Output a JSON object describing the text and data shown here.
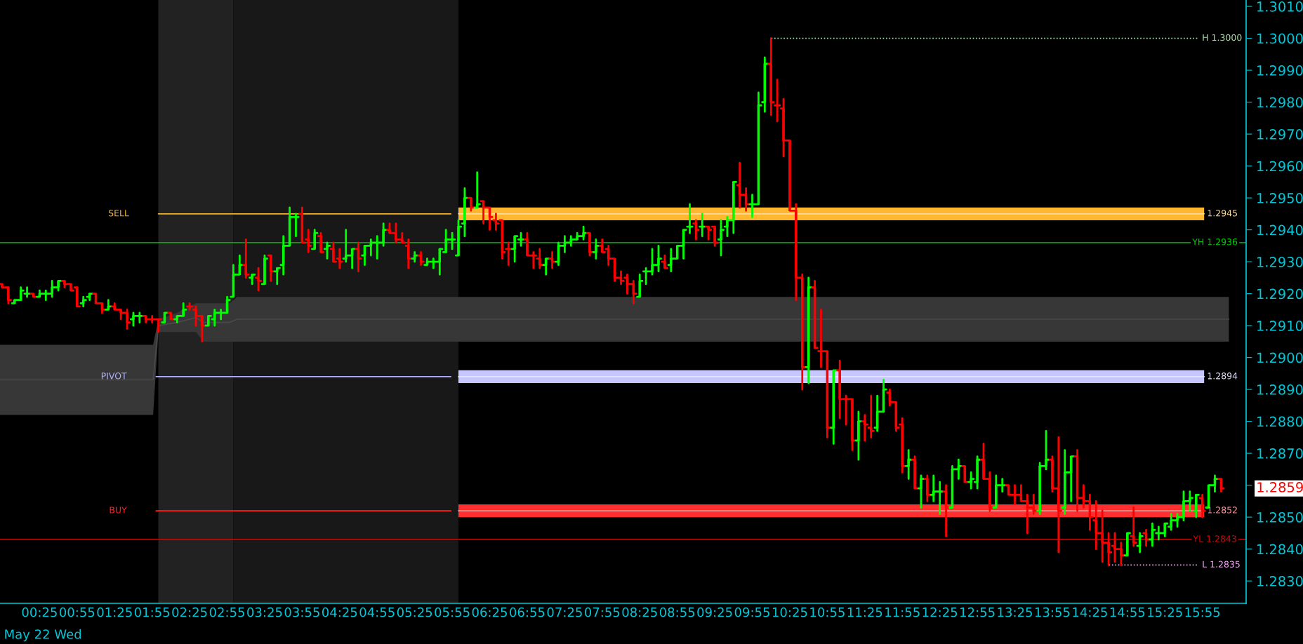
{
  "chart_data": {
    "type": "candlestick",
    "x": [
      -0.0833,
      0,
      0.0833,
      0.1667,
      0.25,
      0.3333,
      0.4167,
      0.5,
      0.5833,
      0.6667,
      0.75,
      0.8333,
      0.9167,
      1,
      1.0833,
      1.1667,
      1.25,
      1.3333,
      1.4167,
      1.5,
      1.5833,
      1.6667,
      1.75,
      1.8333,
      1.9167,
      2,
      2.0833,
      2.1667,
      2.25,
      2.3333,
      2.4167,
      2.5,
      2.5833,
      2.6667,
      2.75,
      2.8333,
      2.9167,
      3,
      3.0833,
      3.1667,
      3.25,
      3.3333,
      3.4167,
      3.5,
      3.5833,
      3.6667,
      3.75,
      3.8333,
      3.9167,
      4,
      4.0833,
      4.1667,
      4.25,
      4.3333,
      4.4167,
      4.5,
      4.5833,
      4.6667,
      4.75,
      4.8333,
      4.9167,
      5,
      5.0833,
      5.1667,
      5.25,
      5.3333,
      5.4167,
      5.5,
      5.5833,
      5.6667,
      5.75,
      5.8333,
      5.9167,
      6,
      6.0833,
      6.1667,
      6.25,
      6.3333,
      6.4167,
      6.5,
      6.5833,
      6.6667,
      6.75,
      6.8333,
      6.9167,
      7,
      7.0833,
      7.1667,
      7.25,
      7.3333,
      7.4167,
      7.5,
      7.5833,
      7.6667,
      7.75,
      7.8333,
      7.9167,
      8,
      8.0833,
      8.1667,
      8.25,
      8.3333,
      8.4167,
      8.5,
      8.5833,
      8.6667,
      8.75,
      8.8333,
      8.9167,
      9,
      9.0833,
      9.1667,
      9.25,
      9.3333,
      9.4167,
      9.5,
      9.5833,
      9.6667,
      9.75,
      9.8333,
      9.9167,
      10,
      10.0833,
      10.1667,
      10.25,
      10.3333,
      10.4167,
      10.5,
      10.5833,
      10.6667,
      10.75,
      10.8333,
      10.9167,
      11,
      11.0833,
      11.1667,
      11.25,
      11.3333,
      11.4167,
      11.5,
      11.5833,
      11.6667,
      11.75,
      11.8333,
      11.9167,
      12,
      12.0833,
      12.1667,
      12.25,
      12.3333,
      12.4167,
      12.5,
      12.5833,
      12.6667,
      12.75,
      12.8333,
      12.9167,
      13,
      13.0833,
      13.1667,
      13.25,
      13.3333,
      13.4167,
      13.5,
      13.5833,
      13.6667,
      13.75,
      13.8333,
      13.9167,
      14,
      14.0833,
      14.1667,
      14.25,
      14.3333,
      14.4167,
      14.5,
      14.5833,
      14.6667,
      14.75,
      14.8333,
      14.9167,
      15,
      15.0833,
      15.1667,
      15.25,
      15.3333,
      15.4167,
      15.5,
      15.5833,
      15.6667,
      15.75,
      15.8333,
      15.9167,
      16,
      16.0833,
      16.1667
    ],
    "ohlc": [
      [
        1.2923,
        1.2923,
        1.2922,
        1.2922
      ],
      [
        1.2922,
        1.2922,
        1.2917,
        1.2918
      ],
      [
        1.2917,
        1.2918,
        1.2917,
        1.2918
      ],
      [
        1.2918,
        1.2922,
        1.2918,
        1.2921
      ],
      [
        1.292,
        1.2922,
        1.2919,
        1.292
      ],
      [
        1.292,
        1.292,
        1.2919,
        1.2919
      ],
      [
        1.2919,
        1.2921,
        1.2919,
        1.292
      ],
      [
        1.292,
        1.2921,
        1.2918,
        1.292
      ],
      [
        1.292,
        1.2924,
        1.2919,
        1.2922
      ],
      [
        1.2922,
        1.2924,
        1.2921,
        1.2924
      ],
      [
        1.2924,
        1.2924,
        1.2922,
        1.2923
      ],
      [
        1.2923,
        1.2923,
        1.2921,
        1.2921
      ],
      [
        1.2922,
        1.2922,
        1.2916,
        1.2916
      ],
      [
        1.2917,
        1.2919,
        1.2916,
        1.2918
      ],
      [
        1.2919,
        1.292,
        1.2918,
        1.292
      ],
      [
        1.292,
        1.292,
        1.2917,
        1.2917
      ],
      [
        1.2917,
        1.2917,
        1.2914,
        1.2915
      ],
      [
        1.2915,
        1.2918,
        1.2915,
        1.2916
      ],
      [
        1.2916,
        1.2917,
        1.2915,
        1.2915
      ],
      [
        1.2915,
        1.2915,
        1.2912,
        1.2914
      ],
      [
        1.2914,
        1.2915,
        1.2909,
        1.2911
      ],
      [
        1.2912,
        1.2914,
        1.291,
        1.2913
      ],
      [
        1.2913,
        1.2914,
        1.2911,
        1.2913
      ],
      [
        1.2913,
        1.2913,
        1.2911,
        1.2912
      ],
      [
        1.2912,
        1.2913,
        1.2911,
        1.2912
      ],
      [
        1.2912,
        1.2912,
        1.2908,
        1.2912
      ],
      [
        1.2911,
        1.2914,
        1.2911,
        1.2914
      ],
      [
        1.2914,
        1.2914,
        1.2912,
        1.2912
      ],
      [
        1.2912,
        1.2913,
        1.2911,
        1.2913
      ],
      [
        1.2913,
        1.2917,
        1.2913,
        1.2915
      ],
      [
        1.2916,
        1.2917,
        1.2915,
        1.2916
      ],
      [
        1.2915,
        1.2916,
        1.291,
        1.2913
      ],
      [
        1.2913,
        1.2913,
        1.2905,
        1.291
      ],
      [
        1.291,
        1.2913,
        1.291,
        1.2913
      ],
      [
        1.2912,
        1.2915,
        1.291,
        1.2914
      ],
      [
        1.2914,
        1.2915,
        1.2912,
        1.2914
      ],
      [
        1.2914,
        1.2919,
        1.2914,
        1.2918
      ],
      [
        1.2919,
        1.2929,
        1.2919,
        1.2926
      ],
      [
        1.2926,
        1.2932,
        1.2926,
        1.2929
      ],
      [
        1.2929,
        1.2937,
        1.2925,
        1.2926
      ],
      [
        1.2925,
        1.2926,
        1.2923,
        1.2926
      ],
      [
        1.2925,
        1.2928,
        1.2921,
        1.2924
      ],
      [
        1.2923,
        1.2932,
        1.2923,
        1.2931
      ],
      [
        1.2932,
        1.2932,
        1.2924,
        1.2927
      ],
      [
        1.2927,
        1.2928,
        1.2923,
        1.2928
      ],
      [
        1.2929,
        1.2938,
        1.2926,
        1.2935
      ],
      [
        1.2935,
        1.2947,
        1.2935,
        1.2944
      ],
      [
        1.2944,
        1.2945,
        1.2938,
        1.2944
      ],
      [
        1.2945,
        1.2947,
        1.2936,
        1.2936
      ],
      [
        1.2937,
        1.294,
        1.2933,
        1.2935
      ],
      [
        1.2934,
        1.294,
        1.2934,
        1.2939
      ],
      [
        1.2938,
        1.2939,
        1.2933,
        1.2933
      ],
      [
        1.2934,
        1.2936,
        1.2931,
        1.2935
      ],
      [
        1.2934,
        1.2936,
        1.293,
        1.293
      ],
      [
        1.2931,
        1.2934,
        1.2928,
        1.293
      ],
      [
        1.2931,
        1.294,
        1.293,
        1.2932
      ],
      [
        1.2932,
        1.2934,
        1.2928,
        1.2934
      ],
      [
        1.2934,
        1.2936,
        1.2927,
        1.2931
      ],
      [
        1.2932,
        1.2935,
        1.2929,
        1.2935
      ],
      [
        1.2935,
        1.2937,
        1.2932,
        1.2936
      ],
      [
        1.2936,
        1.2938,
        1.2931,
        1.2936
      ],
      [
        1.2936,
        1.2942,
        1.2935,
        1.294
      ],
      [
        1.294,
        1.2942,
        1.2939,
        1.2939
      ],
      [
        1.2939,
        1.2942,
        1.2936,
        1.2937
      ],
      [
        1.2937,
        1.2939,
        1.2936,
        1.2936
      ],
      [
        1.2935,
        1.2937,
        1.2928,
        1.2931
      ],
      [
        1.2931,
        1.2933,
        1.293,
        1.2932
      ],
      [
        1.2932,
        1.2933,
        1.2929,
        1.293
      ],
      [
        1.2929,
        1.2931,
        1.2929,
        1.293
      ],
      [
        1.293,
        1.2931,
        1.2928,
        1.293
      ],
      [
        1.293,
        1.2934,
        1.2926,
        1.2934
      ],
      [
        1.2933,
        1.294,
        1.2933,
        1.2937
      ],
      [
        1.2937,
        1.2939,
        1.2934,
        1.2937
      ],
      [
        1.2932,
        1.2943,
        1.2932,
        1.2941
      ],
      [
        1.2942,
        1.2953,
        1.2938,
        1.295
      ],
      [
        1.295,
        1.295,
        1.2946,
        1.2947
      ],
      [
        1.2947,
        1.2958,
        1.2947,
        1.2948
      ],
      [
        1.2949,
        1.2949,
        1.2942,
        1.2947
      ],
      [
        1.2947,
        1.2947,
        1.294,
        1.2944
      ],
      [
        1.2943,
        1.2945,
        1.294,
        1.2942
      ],
      [
        1.2943,
        1.2943,
        1.2931,
        1.2933
      ],
      [
        1.2934,
        1.2936,
        1.2929,
        1.2934
      ],
      [
        1.2934,
        1.2938,
        1.293,
        1.2938
      ],
      [
        1.2937,
        1.2939,
        1.2935,
        1.2937
      ],
      [
        1.2937,
        1.2939,
        1.2932,
        1.2932
      ],
      [
        1.2932,
        1.2933,
        1.2928,
        1.2932
      ],
      [
        1.2931,
        1.2934,
        1.2928,
        1.2929
      ],
      [
        1.2929,
        1.2931,
        1.2926,
        1.2931
      ],
      [
        1.2931,
        1.2933,
        1.2928,
        1.293
      ],
      [
        1.293,
        1.2936,
        1.2929,
        1.2935
      ],
      [
        1.2935,
        1.2938,
        1.2933,
        1.2936
      ],
      [
        1.2936,
        1.2938,
        1.2935,
        1.2937
      ],
      [
        1.2937,
        1.2939,
        1.2937,
        1.2938
      ],
      [
        1.2938,
        1.2941,
        1.2937,
        1.2939
      ],
      [
        1.2939,
        1.2939,
        1.2932,
        1.2933
      ],
      [
        1.2933,
        1.2937,
        1.2931,
        1.2935
      ],
      [
        1.2935,
        1.2937,
        1.2933,
        1.2933
      ],
      [
        1.2934,
        1.2935,
        1.2929,
        1.2931
      ],
      [
        1.2931,
        1.2931,
        1.2924,
        1.2925
      ],
      [
        1.2925,
        1.2927,
        1.2923,
        1.2924
      ],
      [
        1.2925,
        1.2926,
        1.292,
        1.2923
      ],
      [
        1.2923,
        1.2924,
        1.2917,
        1.292
      ],
      [
        1.2919,
        1.2926,
        1.2919,
        1.2924
      ],
      [
        1.2927,
        1.2928,
        1.2923,
        1.2927
      ],
      [
        1.2927,
        1.2934,
        1.2926,
        1.2929
      ],
      [
        1.2929,
        1.2935,
        1.2927,
        1.2931
      ],
      [
        1.293,
        1.2932,
        1.2928,
        1.2928
      ],
      [
        1.2929,
        1.2934,
        1.2927,
        1.2931
      ],
      [
        1.2931,
        1.2935,
        1.2931,
        1.2935
      ],
      [
        1.2935,
        1.294,
        1.2931,
        1.294
      ],
      [
        1.2941,
        1.2948,
        1.2939,
        1.2941
      ],
      [
        1.2942,
        1.2943,
        1.2937,
        1.294
      ],
      [
        1.2941,
        1.2945,
        1.2938,
        1.2941
      ],
      [
        1.2941,
        1.2941,
        1.2937,
        1.294
      ],
      [
        1.2941,
        1.2941,
        1.2935,
        1.2936
      ],
      [
        1.2937,
        1.2943,
        1.2932,
        1.294
      ],
      [
        1.2941,
        1.2944,
        1.2938,
        1.2943
      ],
      [
        1.2943,
        1.2955,
        1.2939,
        1.2955
      ],
      [
        1.2954,
        1.2961,
        1.2947,
        1.2951
      ],
      [
        1.2951,
        1.2953,
        1.2946,
        1.2948
      ],
      [
        1.2948,
        1.2951,
        1.2944,
        1.2948
      ],
      [
        1.2948,
        1.2983,
        1.2948,
        1.2979
      ],
      [
        1.298,
        1.2994,
        1.2977,
        1.2992
      ],
      [
        1.2992,
        1.3,
        1.2976,
        1.298
      ],
      [
        1.2979,
        1.2987,
        1.2974,
        1.2979
      ],
      [
        1.2978,
        1.2981,
        1.2963,
        1.2968
      ],
      [
        1.2968,
        1.2968,
        1.2946,
        1.2946
      ],
      [
        1.2946,
        1.2948,
        1.2918,
        1.2925
      ],
      [
        1.2925,
        1.2926,
        1.289,
        1.2897
      ],
      [
        1.2897,
        1.2925,
        1.2892,
        1.2922
      ],
      [
        1.2922,
        1.2924,
        1.2903,
        1.2903
      ],
      [
        1.2902,
        1.2915,
        1.2897,
        1.2902
      ],
      [
        1.2902,
        1.2902,
        1.2875,
        1.2878
      ],
      [
        1.2878,
        1.2896,
        1.2873,
        1.2896
      ],
      [
        1.2896,
        1.2899,
        1.2881,
        1.2887
      ],
      [
        1.2887,
        1.2888,
        1.2879,
        1.2887
      ],
      [
        1.2887,
        1.2887,
        1.2871,
        1.2874
      ],
      [
        1.2874,
        1.2883,
        1.2868,
        1.288
      ],
      [
        1.288,
        1.2882,
        1.2874,
        1.2879
      ],
      [
        1.2878,
        1.2888,
        1.2875,
        1.2877
      ],
      [
        1.2878,
        1.2888,
        1.2877,
        1.2883
      ],
      [
        1.2883,
        1.2893,
        1.2883,
        1.289
      ],
      [
        1.2889,
        1.289,
        1.2885,
        1.2886
      ],
      [
        1.2886,
        1.2886,
        1.2877,
        1.2878
      ],
      [
        1.2879,
        1.2881,
        1.2864,
        1.2866
      ],
      [
        1.2866,
        1.2871,
        1.2862,
        1.2868
      ],
      [
        1.2868,
        1.2869,
        1.2859,
        1.2859
      ],
      [
        1.2859,
        1.2863,
        1.2853,
        1.2862
      ],
      [
        1.2862,
        1.2863,
        1.2855,
        1.2857
      ],
      [
        1.2857,
        1.2863,
        1.2855,
        1.2858
      ],
      [
        1.2858,
        1.2861,
        1.2851,
        1.2858
      ],
      [
        1.2858,
        1.286,
        1.2844,
        1.2853
      ],
      [
        1.2853,
        1.2866,
        1.2853,
        1.2865
      ],
      [
        1.2865,
        1.2868,
        1.2862,
        1.2866
      ],
      [
        1.2866,
        1.2866,
        1.2861,
        1.2861
      ],
      [
        1.2861,
        1.2864,
        1.2859,
        1.2862
      ],
      [
        1.2861,
        1.2869,
        1.2859,
        1.2868
      ],
      [
        1.2868,
        1.2873,
        1.2862,
        1.2862
      ],
      [
        1.2862,
        1.2864,
        1.2852,
        1.2853
      ],
      [
        1.2853,
        1.2863,
        1.2853,
        1.286
      ],
      [
        1.286,
        1.2862,
        1.2858,
        1.286
      ],
      [
        1.286,
        1.286,
        1.2857,
        1.2857
      ],
      [
        1.2857,
        1.286,
        1.2854,
        1.2857
      ],
      [
        1.2857,
        1.286,
        1.2855,
        1.2855
      ],
      [
        1.2855,
        1.2857,
        1.2845,
        1.2853
      ],
      [
        1.2853,
        1.2857,
        1.2851,
        1.2852
      ],
      [
        1.2852,
        1.2867,
        1.2851,
        1.2866
      ],
      [
        1.2866,
        1.2877,
        1.2865,
        1.2868
      ],
      [
        1.2868,
        1.2869,
        1.2858,
        1.2859
      ],
      [
        1.2859,
        1.2875,
        1.2839,
        1.2852
      ],
      [
        1.2853,
        1.2871,
        1.2851,
        1.2864
      ],
      [
        1.2864,
        1.2869,
        1.2855,
        1.2869
      ],
      [
        1.2869,
        1.2871,
        1.2852,
        1.2856
      ],
      [
        1.2856,
        1.286,
        1.2853,
        1.2855
      ],
      [
        1.2855,
        1.2857,
        1.2846,
        1.285
      ],
      [
        1.2849,
        1.2855,
        1.284,
        1.2845
      ],
      [
        1.2845,
        1.2852,
        1.2836,
        1.2842
      ],
      [
        1.2842,
        1.2845,
        1.2835,
        1.2839
      ],
      [
        1.2841,
        1.2845,
        1.2836,
        1.284
      ],
      [
        1.284,
        1.2842,
        1.2835,
        1.2838
      ],
      [
        1.2838,
        1.2845,
        1.2838,
        1.2845
      ],
      [
        1.2844,
        1.2853,
        1.2841,
        1.2842
      ],
      [
        1.2841,
        1.2845,
        1.2839,
        1.2844
      ],
      [
        1.2845,
        1.2846,
        1.2841,
        1.2843
      ],
      [
        1.2843,
        1.2848,
        1.2841,
        1.2846
      ],
      [
        1.2845,
        1.2847,
        1.2843,
        1.2845
      ],
      [
        1.2845,
        1.2848,
        1.2844,
        1.2848
      ],
      [
        1.2847,
        1.2851,
        1.2846,
        1.2849
      ],
      [
        1.2849,
        1.2851,
        1.2847,
        1.285
      ],
      [
        1.285,
        1.2858,
        1.2849,
        1.2855
      ],
      [
        1.2855,
        1.2858,
        1.2852,
        1.2856
      ],
      [
        1.2852,
        1.2857,
        1.285,
        1.2857
      ],
      [
        1.2856,
        1.2857,
        1.285,
        1.2852
      ],
      [
        1.2853,
        1.286,
        1.2853,
        1.286
      ],
      [
        1.286,
        1.2863,
        1.2858,
        1.2862
      ],
      [
        1.2862,
        1.2862,
        1.2858,
        1.2859
      ]
    ],
    "colors": [
      "#ff0000",
      "#ff0000",
      "#00ff00",
      "#00ff00",
      "#00ff00",
      "#ff0000",
      "#00ff00",
      "#00ff00",
      "#00ff00",
      "#00ff00",
      "#ff0000",
      "#ff0000",
      "#ff0000",
      "#00ff00",
      "#00ff00",
      "#ff0000",
      "#ff0000",
      "#00ff00",
      "#ff0000",
      "#ff0000",
      "#ff0000",
      "#00ff00",
      "#00ff00",
      "#ff0000",
      "#ff0000",
      "#ff0000",
      "#00ff00",
      "#ff0000",
      "#00ff00",
      "#00ff00",
      "#ff0000",
      "#ff0000",
      "#ff0000",
      "#00ff00",
      "#00ff00",
      "#00ff00",
      "#00ff00",
      "#00ff00",
      "#00ff00",
      "#ff0000",
      "#00ff00",
      "#ff0000",
      "#00ff00",
      "#ff0000",
      "#00ff00",
      "#00ff00",
      "#00ff00",
      "#00ff00",
      "#ff0000",
      "#ff0000",
      "#00ff00",
      "#ff0000",
      "#00ff00",
      "#ff0000",
      "#ff0000",
      "#00ff00",
      "#00ff00",
      "#ff0000",
      "#00ff00",
      "#00ff00",
      "#00ff00",
      "#00ff00",
      "#ff0000",
      "#ff0000",
      "#ff0000",
      "#ff0000",
      "#00ff00",
      "#ff0000",
      "#00ff00",
      "#00ff00",
      "#00ff00",
      "#00ff00",
      "#00ff00",
      "#00ff00",
      "#00ff00",
      "#ff0000",
      "#00ff00",
      "#ff0000",
      "#ff0000",
      "#ff0000",
      "#ff0000",
      "#ff0000",
      "#00ff00",
      "#00ff00",
      "#ff0000",
      "#ff0000",
      "#ff0000",
      "#00ff00",
      "#ff0000",
      "#00ff00",
      "#00ff00",
      "#00ff00",
      "#00ff00",
      "#00ff00",
      "#ff0000",
      "#00ff00",
      "#ff0000",
      "#ff0000",
      "#ff0000",
      "#ff0000",
      "#ff0000",
      "#ff0000",
      "#00ff00",
      "#00ff00",
      "#00ff00",
      "#00ff00",
      "#ff0000",
      "#00ff00",
      "#00ff00",
      "#00ff00",
      "#00ff00",
      "#ff0000",
      "#00ff00",
      "#ff0000",
      "#ff0000",
      "#00ff00",
      "#00ff00",
      "#00ff00",
      "#ff0000",
      "#ff0000",
      "#00ff00",
      "#00ff00",
      "#00ff00",
      "#ff0000",
      "#ff0000",
      "#ff0000",
      "#ff0000",
      "#ff0000",
      "#ff0000",
      "#00ff00",
      "#ff0000",
      "#ff0000",
      "#ff0000",
      "#00ff00",
      "#ff0000",
      "#ff0000",
      "#ff0000",
      "#00ff00",
      "#ff0000",
      "#ff0000",
      "#00ff00",
      "#00ff00",
      "#ff0000",
      "#ff0000",
      "#ff0000",
      "#00ff00",
      "#ff0000",
      "#00ff00",
      "#ff0000",
      "#00ff00",
      "#00ff00",
      "#ff0000",
      "#00ff00",
      "#00ff00",
      "#ff0000",
      "#00ff00",
      "#00ff00",
      "#ff0000",
      "#ff0000",
      "#00ff00",
      "#00ff00",
      "#ff0000",
      "#ff0000",
      "#ff0000",
      "#ff0000",
      "#ff0000",
      "#00ff00",
      "#00ff00",
      "#ff0000",
      "#ff0000",
      "#00ff00",
      "#00ff00",
      "#ff0000",
      "#ff0000",
      "#ff0000",
      "#ff0000",
      "#ff0000",
      "#ff0000",
      "#ff0000",
      "#ff0000",
      "#00ff00",
      "#ff0000",
      "#00ff00",
      "#ff0000",
      "#00ff00",
      "#00ff00",
      "#00ff00",
      "#00ff00",
      "#00ff00",
      "#00ff00",
      "#00ff00",
      "#00ff00",
      "#ff0000",
      "#00ff00",
      "#00ff00",
      "#ff0000"
    ],
    "series": [
      {
        "type": "line",
        "color": "#4a4a4a",
        "x": [
          -0.111,
          1.93,
          2.0,
          2.25,
          2.5,
          2.6,
          2.95,
          3.05,
          16.27
        ],
        "values": [
          1.2893,
          1.2893,
          1.291,
          1.2911,
          1.29125,
          1.2911,
          1.2911,
          1.2912,
          1.2912
        ],
        "lower": [
          1.2882,
          1.2882,
          1.2908,
          1.2908,
          1.2908,
          1.2905,
          1.2905,
          1.2905,
          1.2905
        ],
        "upper": [
          1.2904,
          1.2904,
          1.2912,
          1.2914,
          1.2917,
          1.2917,
          1.2917,
          1.2919,
          1.2919
        ]
      },
      {
        "type": "line",
        "name": "1.2945",
        "color": "#ffdb97",
        "x": [
          6.0,
          15.94
        ],
        "values": [
          1.2945,
          1.2945
        ],
        "lower": [
          1.2943,
          1.2943
        ],
        "upper": [
          1.2947,
          1.2947
        ]
      },
      {
        "type": "line",
        "name": "1.2894",
        "color": "#e3e3ff",
        "x": [
          6.0,
          15.94
        ],
        "values": [
          1.2894,
          1.2894
        ],
        "lower": [
          1.2892,
          1.2892
        ],
        "upper": [
          1.2896,
          1.2896
        ]
      },
      {
        "type": "line",
        "name": "1.2852",
        "color": "#ff9797",
        "x": [
          6.0,
          15.94
        ],
        "values": [
          1.2852,
          1.2852
        ],
        "lower": [
          1.285,
          1.285
        ],
        "upper": [
          1.2854,
          1.2854
        ]
      },
      {
        "type": "line",
        "name": "SELL",
        "color": "#f0b030",
        "x": [
          2.0,
          5.9
        ],
        "values": [
          1.2945,
          1.2945
        ]
      },
      {
        "type": "line",
        "name": "PIVOT",
        "color": "#b0b0ff",
        "x": [
          1.97,
          5.9
        ],
        "values": [
          1.2894,
          1.2894
        ]
      },
      {
        "type": "line",
        "name": "BUY",
        "color": "#ff2020",
        "x": [
          1.97,
          5.9
        ],
        "values": [
          1.2852,
          1.2852
        ]
      },
      {
        "type": "line",
        "name": "H 1.3000",
        "color": "#a0e8a0",
        "line_style": "dotted",
        "x": [
          10.17,
          15.86
        ],
        "values": [
          1.3,
          1.3
        ]
      },
      {
        "type": "line",
        "name": "L 1.2835",
        "color": "#f0a8f0",
        "line_style": "dotted",
        "x": [
          14.67,
          15.86
        ],
        "values": [
          1.2835,
          1.2835
        ]
      }
    ],
    "ref_lines": [
      {
        "axis": "y",
        "value": 1.2936,
        "label": "YH 1.2936",
        "color": "#00d000"
      },
      {
        "axis": "y",
        "value": 1.2843,
        "label": "YL 1.2843",
        "color": "#e00000"
      }
    ],
    "bands": [
      {
        "axis": "x",
        "from": 2.0,
        "to": 3.0,
        "color": "#222222"
      },
      {
        "axis": "x",
        "from": 3.0,
        "to": 6.0,
        "color": "#181818"
      }
    ],
    "annotations": [
      "May 22 Wed",
      "1.2859"
    ],
    "xlim": [
      -0.111,
      16.5
    ],
    "xticks": [
      {
        "value": 0.4167,
        "label": "00:25"
      },
      {
        "value": 0.9167,
        "label": "00:55"
      },
      {
        "value": 1.4167,
        "label": "01:25"
      },
      {
        "value": 1.9167,
        "label": "01:55"
      },
      {
        "value": 2.4167,
        "label": "02:25"
      },
      {
        "value": 2.9167,
        "label": "02:55"
      },
      {
        "value": 3.4167,
        "label": "03:25"
      },
      {
        "value": 3.9167,
        "label": "03:55"
      },
      {
        "value": 4.4167,
        "label": "04:25"
      },
      {
        "value": 4.9167,
        "label": "04:55"
      },
      {
        "value": 5.4167,
        "label": "05:25"
      },
      {
        "value": 5.9167,
        "label": "05:55"
      },
      {
        "value": 6.4167,
        "label": "06:25"
      },
      {
        "value": 6.9167,
        "label": "06:55"
      },
      {
        "value": 7.4167,
        "label": "07:25"
      },
      {
        "value": 7.9167,
        "label": "07:55"
      },
      {
        "value": 8.4167,
        "label": "08:25"
      },
      {
        "value": 8.9167,
        "label": "08:55"
      },
      {
        "value": 9.4167,
        "label": "09:25"
      },
      {
        "value": 9.9167,
        "label": "09:55"
      },
      {
        "value": 10.4167,
        "label": "10:25"
      },
      {
        "value": 10.9167,
        "label": "10:55"
      },
      {
        "value": 11.4167,
        "label": "11:25"
      },
      {
        "value": 11.9167,
        "label": "11:55"
      },
      {
        "value": 12.4167,
        "label": "12:25"
      },
      {
        "value": 12.9167,
        "label": "12:55"
      },
      {
        "value": 13.4167,
        "label": "13:25"
      },
      {
        "value": 13.9167,
        "label": "13:55"
      },
      {
        "value": 14.4167,
        "label": "14:25"
      },
      {
        "value": 14.9167,
        "label": "14:55"
      },
      {
        "value": 15.4167,
        "label": "15:25"
      },
      {
        "value": 15.9167,
        "label": "15:55"
      }
    ],
    "ylim": [
      1.2823,
      1.3012
    ],
    "yticks": [
      {
        "value": 1.283,
        "label": "1.2830"
      },
      {
        "value": 1.284,
        "label": "1.2840"
      },
      {
        "value": 1.285,
        "label": "1.2850"
      },
      {
        "value": 1.286,
        "label": null
      },
      {
        "value": 1.287,
        "label": "1.2870"
      },
      {
        "value": 1.288,
        "label": "1.2880"
      },
      {
        "value": 1.289,
        "label": "1.2890"
      },
      {
        "value": 1.29,
        "label": "1.2900"
      },
      {
        "value": 1.291,
        "label": "1.2910"
      },
      {
        "value": 1.292,
        "label": "1.2920"
      },
      {
        "value": 1.293,
        "label": "1.2930"
      },
      {
        "value": 1.294,
        "label": "1.2940"
      },
      {
        "value": 1.295,
        "label": "1.2950"
      },
      {
        "value": 1.296,
        "label": "1.2960"
      },
      {
        "value": 1.297,
        "label": "1.2970"
      },
      {
        "value": 1.298,
        "label": "1.2980"
      },
      {
        "value": 1.299,
        "label": "1.2990"
      },
      {
        "value": 1.3,
        "label": "1.3000"
      },
      {
        "value": 1.301,
        "label": "1.3010"
      }
    ]
  }
}
